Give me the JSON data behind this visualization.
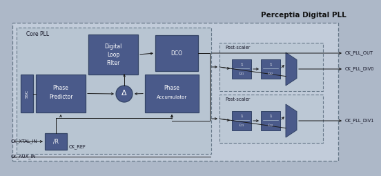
{
  "bg_color": "#adb8c8",
  "inner_bg": "#c2ccda",
  "core_bg": "#b8c5d2",
  "post_bg": "#bcc8d5",
  "block_color": "#4a5a8a",
  "title": "Perceptia Digital PLL",
  "title_fontsize": 7.5,
  "core_pll_label": "Core PLL",
  "labels": {
    "dlf1": "Digital",
    "dlf2": "Loop",
    "dlf3": "Filter",
    "dco": "DCO",
    "phase_pred1": "Phase",
    "phase_pred2": "Predictor",
    "ssc": "SSC",
    "delta": "Δ",
    "phase_acc1": "Phase",
    "phase_acc2": "Accumulator",
    "ref_div": "/R",
    "ck_ref": "CK_REF",
    "ck_xtal": "CK_XTAL_IN",
    "ck_aux": "CK_AUX_IN",
    "ck_pll_out": "CK_PLL_OUT",
    "ck_pll_div0": "CK_PLL_DIV0",
    "ck_pll_div1": "CK_PLL_DIV1",
    "post_scaler": "Post-scaler"
  },
  "arrow_color": "#1a1a1a",
  "line_color": "#1a1a1a",
  "font_size": 5.5,
  "small_font": 4.8,
  "tiny_font": 3.8
}
